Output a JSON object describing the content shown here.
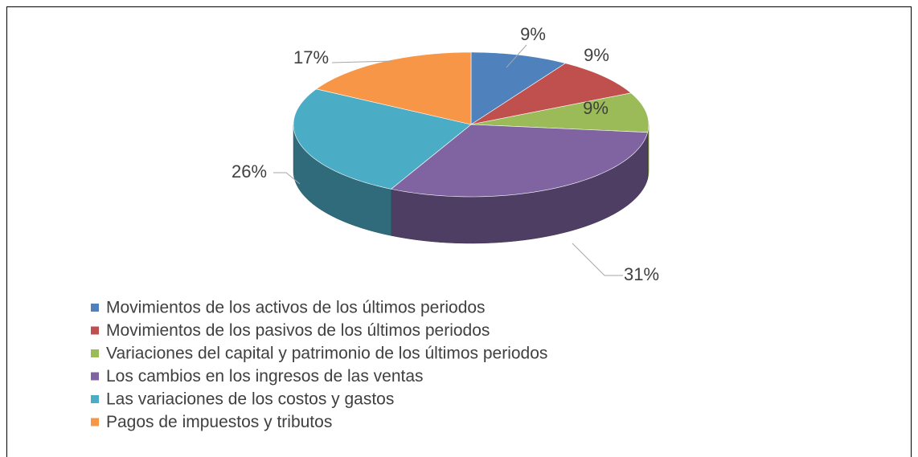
{
  "chart_data": {
    "type": "pie",
    "categories": [
      "Movimientos de los activos de los últimos periodos",
      "Movimientos de los pasivos de los últimos periodos",
      "Variaciones del capital y patrimonio de los últimos periodos",
      "Los cambios en los ingresos de las ventas",
      "Las variaciones de los costos y gastos",
      "Pagos de impuestos y tributos"
    ],
    "values": [
      9,
      9,
      9,
      31,
      26,
      17
    ],
    "value_labels": [
      "9%",
      "9%",
      "9%",
      "31%",
      "26%",
      "17%"
    ],
    "colors": [
      "#4f81bd",
      "#c0504d",
      "#9bbb59",
      "#8064a2",
      "#4bacc6",
      "#f79646"
    ],
    "legend": "bottom"
  }
}
